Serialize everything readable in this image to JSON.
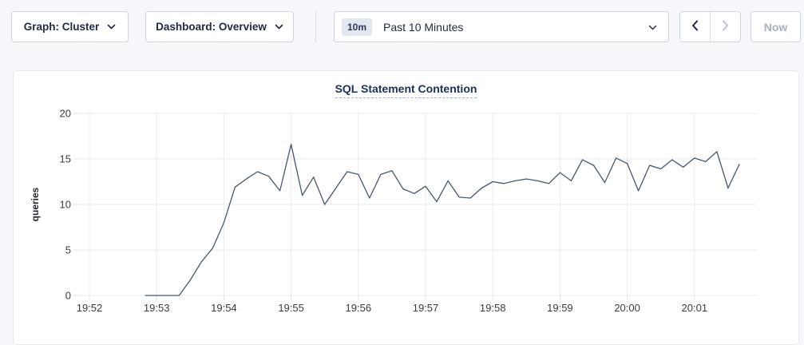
{
  "page": {
    "background": "#f5f7fa"
  },
  "toolbar": {
    "graph_dropdown": {
      "label": "Graph: Cluster",
      "icon": "chevron-down-icon"
    },
    "dashboard_dropdown": {
      "label": "Dashboard: Overview",
      "icon": "chevron-down-icon"
    },
    "time_picker": {
      "badge": "10m",
      "label": "Past 10 Minutes",
      "icon": "chevron-down-icon"
    },
    "prev_button": {
      "icon": "chevron-left-icon",
      "enabled": true
    },
    "next_button": {
      "icon": "chevron-right-icon",
      "enabled": false
    },
    "now_button": {
      "label": "Now",
      "enabled": false
    }
  },
  "chart_data": {
    "type": "line",
    "title": "SQL Statement Contention",
    "xlabel": "",
    "ylabel": "queries",
    "ylim": [
      0,
      20
    ],
    "y_ticks": [
      0,
      5,
      10,
      15,
      20
    ],
    "x_ticks": [
      "19:52",
      "19:53",
      "19:54",
      "19:55",
      "19:56",
      "19:57",
      "19:58",
      "19:59",
      "20:00",
      "20:01"
    ],
    "grid": true,
    "legend": "none",
    "line_color": "#475770",
    "series": [
      {
        "name": "queries",
        "start_time": "19:52:50",
        "interval_seconds": 10,
        "values": [
          0,
          0,
          0,
          0,
          1.7,
          3.7,
          5.2,
          8,
          11.9,
          12.8,
          13.6,
          13.1,
          11.5,
          16.6,
          11,
          13,
          10,
          11.8,
          13.6,
          13.3,
          10.7,
          13.3,
          13.7,
          11.7,
          11.2,
          12,
          10.3,
          12.6,
          10.8,
          10.7,
          11.8,
          12.5,
          12.3,
          12.6,
          12.8,
          12.6,
          12.3,
          13.5,
          12.6,
          14.9,
          14.3,
          12.4,
          15.1,
          14.5,
          11.5,
          14.3,
          13.9,
          14.9,
          14.1,
          15.1,
          14.7,
          15.8,
          11.8,
          14.4
        ]
      }
    ]
  },
  "colors": {
    "card_border": "#e4e9f0",
    "button_border": "#cdd5e2",
    "text_primary": "#1f2940",
    "text_disabled": "#a7afc0",
    "badge_bg": "#e3e7ef",
    "gridline": "#ebebee",
    "axis_text": "#3a3b40",
    "title_color": "#1c2f5b",
    "line_color": "#475770"
  }
}
